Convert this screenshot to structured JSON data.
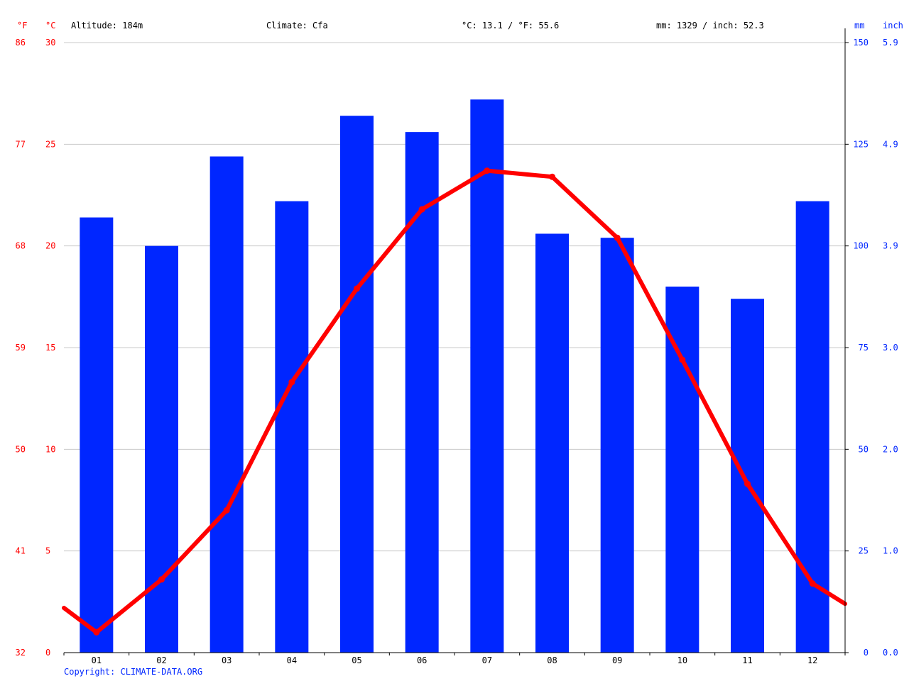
{
  "header": {
    "altitude": "Altitude: 184m",
    "climate": "Climate: Cfa",
    "avg_temp": "°C: 13.1 / °F: 55.6",
    "precip_total": "mm: 1329 / inch: 52.3"
  },
  "copyright": "Copyright: CLIMATE-DATA.ORG",
  "colors": {
    "precip": "#0026ff",
    "temp": "#ff0000",
    "grid": "#c8c8c8",
    "axis": "#000000"
  },
  "chart_data": {
    "type": "bar",
    "categories": [
      "01",
      "02",
      "03",
      "04",
      "05",
      "06",
      "07",
      "08",
      "09",
      "10",
      "11",
      "12"
    ],
    "series": [
      {
        "kind": "bar",
        "axis": "right",
        "unit": "mm",
        "values": [
          107,
          100,
          122,
          111,
          132,
          128,
          136,
          103,
          102,
          90,
          87,
          111
        ]
      },
      {
        "kind": "line",
        "axis": "left",
        "unit": "°C",
        "values": [
          1.0,
          3.6,
          7.0,
          13.3,
          17.9,
          21.8,
          23.7,
          23.4,
          20.4,
          14.4,
          8.3,
          3.4
        ],
        "boundary_values": [
          2.2,
          2.4
        ]
      }
    ],
    "axes": {
      "left_c": {
        "label": "°C",
        "ticks": [
          0,
          5,
          10,
          15,
          20,
          25,
          30
        ],
        "range": [
          0,
          30
        ]
      },
      "left_f": {
        "label": "°F",
        "ticks": [
          32,
          41,
          50,
          59,
          68,
          77,
          86
        ]
      },
      "right_mm": {
        "label": "mm",
        "ticks": [
          0,
          25,
          50,
          75,
          100,
          125,
          150
        ],
        "range": [
          0,
          150
        ]
      },
      "right_in": {
        "label": "inch",
        "ticks": [
          "0.0",
          "1.0",
          "2.0",
          "3.0",
          "3.9",
          "4.9",
          "5.9"
        ]
      }
    },
    "grid": true
  }
}
